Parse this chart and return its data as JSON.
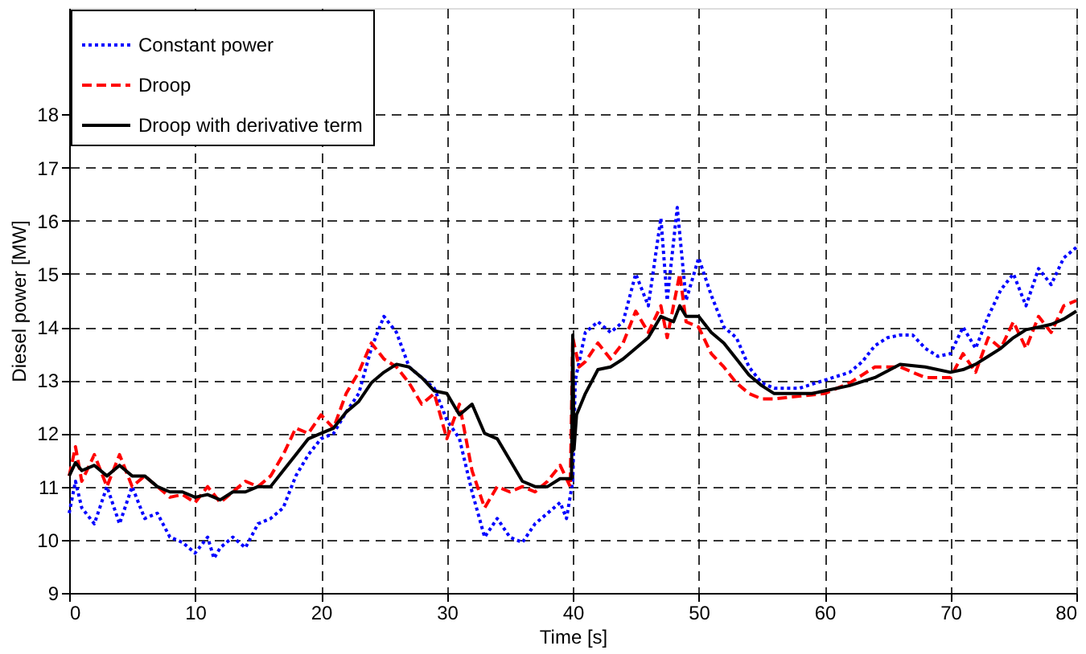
{
  "chart_data": {
    "type": "line",
    "xlabel": "Time [s]",
    "ylabel": "Diesel power [MW]",
    "xlim": [
      0,
      80
    ],
    "xticks": [
      0,
      10,
      20,
      30,
      40,
      50,
      60,
      70,
      80
    ],
    "ylim": [
      9,
      20
    ],
    "yticks": [
      9,
      10,
      11,
      12,
      13,
      14,
      15,
      16,
      17,
      18
    ],
    "grid": true,
    "legend": "top left",
    "series": [
      {
        "name": "Constant power",
        "color": "#0000ff",
        "line_style": "dotted",
        "x": [
          0,
          0.5,
          1,
          2,
          3,
          4,
          5,
          6,
          7,
          8,
          9,
          10,
          11,
          11.5,
          12,
          13,
          14,
          15,
          16,
          17,
          18,
          19,
          20,
          21,
          22,
          23,
          24,
          25,
          26,
          27,
          28,
          29,
          30,
          31,
          32,
          33,
          34,
          35,
          36,
          37,
          38,
          39,
          39.5,
          40,
          40.2,
          41,
          42,
          43,
          44,
          45,
          46,
          47,
          47.5,
          48.3,
          49,
          50,
          51,
          52,
          53,
          54,
          55,
          56,
          58,
          60,
          62,
          63,
          64,
          65,
          66,
          67,
          68,
          69,
          70,
          71,
          72,
          73,
          74,
          75,
          76,
          77,
          78,
          79,
          80
        ],
        "values": [
          10.5,
          11.1,
          10.6,
          10.3,
          11.0,
          10.3,
          11.0,
          10.4,
          10.5,
          10.05,
          9.95,
          9.75,
          10.05,
          9.65,
          9.85,
          10.05,
          9.85,
          10.3,
          10.4,
          10.6,
          11.2,
          11.6,
          11.9,
          12.0,
          12.4,
          12.75,
          13.6,
          14.2,
          13.9,
          13.25,
          13.05,
          12.85,
          12.25,
          11.9,
          10.9,
          10.05,
          10.4,
          10.05,
          9.95,
          10.3,
          10.5,
          10.7,
          10.4,
          11.1,
          13.0,
          13.9,
          14.1,
          13.9,
          14.1,
          15.0,
          14.4,
          16.05,
          14.5,
          16.25,
          14.5,
          15.3,
          14.6,
          14.0,
          13.8,
          13.25,
          12.95,
          12.85,
          12.85,
          13.0,
          13.15,
          13.35,
          13.65,
          13.8,
          13.85,
          13.85,
          13.6,
          13.45,
          13.5,
          14.0,
          13.6,
          14.2,
          14.7,
          15.0,
          14.4,
          15.1,
          14.8,
          15.3,
          15.5
        ]
      },
      {
        "name": "Droop",
        "color": "#ff0000",
        "line_style": "dashed",
        "x": [
          0,
          0.5,
          1,
          2,
          3,
          4,
          5,
          6,
          7,
          8,
          9,
          10,
          11,
          12,
          13,
          14,
          15,
          16,
          17,
          18,
          19,
          20,
          21,
          22,
          23,
          24,
          25,
          26,
          27,
          28,
          29,
          30,
          31,
          32,
          33,
          34,
          35,
          36,
          37,
          38,
          39,
          39.8,
          40,
          40.5,
          41,
          42,
          43,
          44,
          45,
          46,
          47,
          47.5,
          48.5,
          49,
          50,
          51,
          52,
          53,
          54,
          55,
          56,
          58,
          60,
          62,
          64,
          66,
          68,
          70,
          71,
          72,
          73,
          74,
          75,
          76,
          77,
          78,
          79,
          80
        ],
        "values": [
          11.2,
          11.75,
          11.1,
          11.6,
          11.0,
          11.6,
          11.0,
          11.2,
          11.0,
          10.8,
          10.85,
          10.7,
          11.0,
          10.7,
          10.9,
          11.1,
          11.0,
          11.2,
          11.6,
          12.1,
          12.0,
          12.35,
          12.1,
          12.75,
          13.15,
          13.7,
          13.4,
          13.25,
          12.95,
          12.55,
          12.75,
          11.9,
          12.55,
          11.3,
          10.6,
          11.0,
          10.9,
          11.0,
          10.9,
          11.1,
          11.4,
          11.0,
          13.8,
          13.25,
          13.35,
          13.7,
          13.4,
          13.7,
          14.3,
          13.9,
          14.4,
          13.8,
          15.0,
          14.1,
          14.0,
          13.5,
          13.25,
          12.95,
          12.75,
          12.65,
          12.65,
          12.7,
          12.75,
          12.95,
          13.25,
          13.25,
          13.05,
          13.05,
          13.5,
          13.15,
          13.8,
          13.6,
          14.1,
          13.6,
          14.2,
          13.9,
          14.4,
          14.5
        ]
      },
      {
        "name": "Droop with derivative term",
        "color": "#000000",
        "line_style": "solid",
        "x": [
          0,
          0.5,
          1,
          2,
          3,
          4,
          5,
          6,
          7,
          8,
          9,
          10,
          11,
          12,
          13,
          14,
          15,
          16,
          17,
          18,
          19,
          20,
          21,
          22,
          23,
          24,
          25,
          26,
          27,
          28,
          29,
          30,
          31,
          32,
          33,
          34,
          35,
          36,
          37,
          38,
          39,
          39.9,
          40,
          40.1,
          40.3,
          41,
          42,
          43,
          44,
          45,
          46,
          47,
          48,
          48.5,
          49,
          50,
          51,
          52,
          53,
          54,
          55,
          56,
          57,
          58,
          59,
          60,
          62,
          64,
          66,
          68,
          70,
          71,
          72,
          73,
          74,
          75,
          76,
          77,
          78,
          79,
          80
        ],
        "values": [
          11.2,
          11.45,
          11.3,
          11.4,
          11.2,
          11.4,
          11.2,
          11.2,
          11.0,
          10.9,
          10.9,
          10.8,
          10.85,
          10.75,
          10.9,
          10.9,
          11.0,
          11.0,
          11.3,
          11.6,
          11.9,
          12.0,
          12.1,
          12.4,
          12.6,
          12.95,
          13.15,
          13.3,
          13.25,
          13.05,
          12.8,
          12.75,
          12.35,
          12.55,
          12.0,
          11.9,
          11.5,
          11.1,
          11.0,
          11.0,
          11.15,
          11.15,
          13.85,
          11.7,
          12.35,
          12.75,
          13.2,
          13.25,
          13.4,
          13.6,
          13.8,
          14.2,
          14.1,
          14.4,
          14.2,
          14.2,
          13.9,
          13.7,
          13.4,
          13.1,
          12.9,
          12.75,
          12.75,
          12.75,
          12.75,
          12.8,
          12.9,
          13.05,
          13.3,
          13.25,
          13.15,
          13.2,
          13.3,
          13.45,
          13.6,
          13.8,
          13.95,
          14.0,
          14.05,
          14.15,
          14.3
        ]
      }
    ]
  }
}
